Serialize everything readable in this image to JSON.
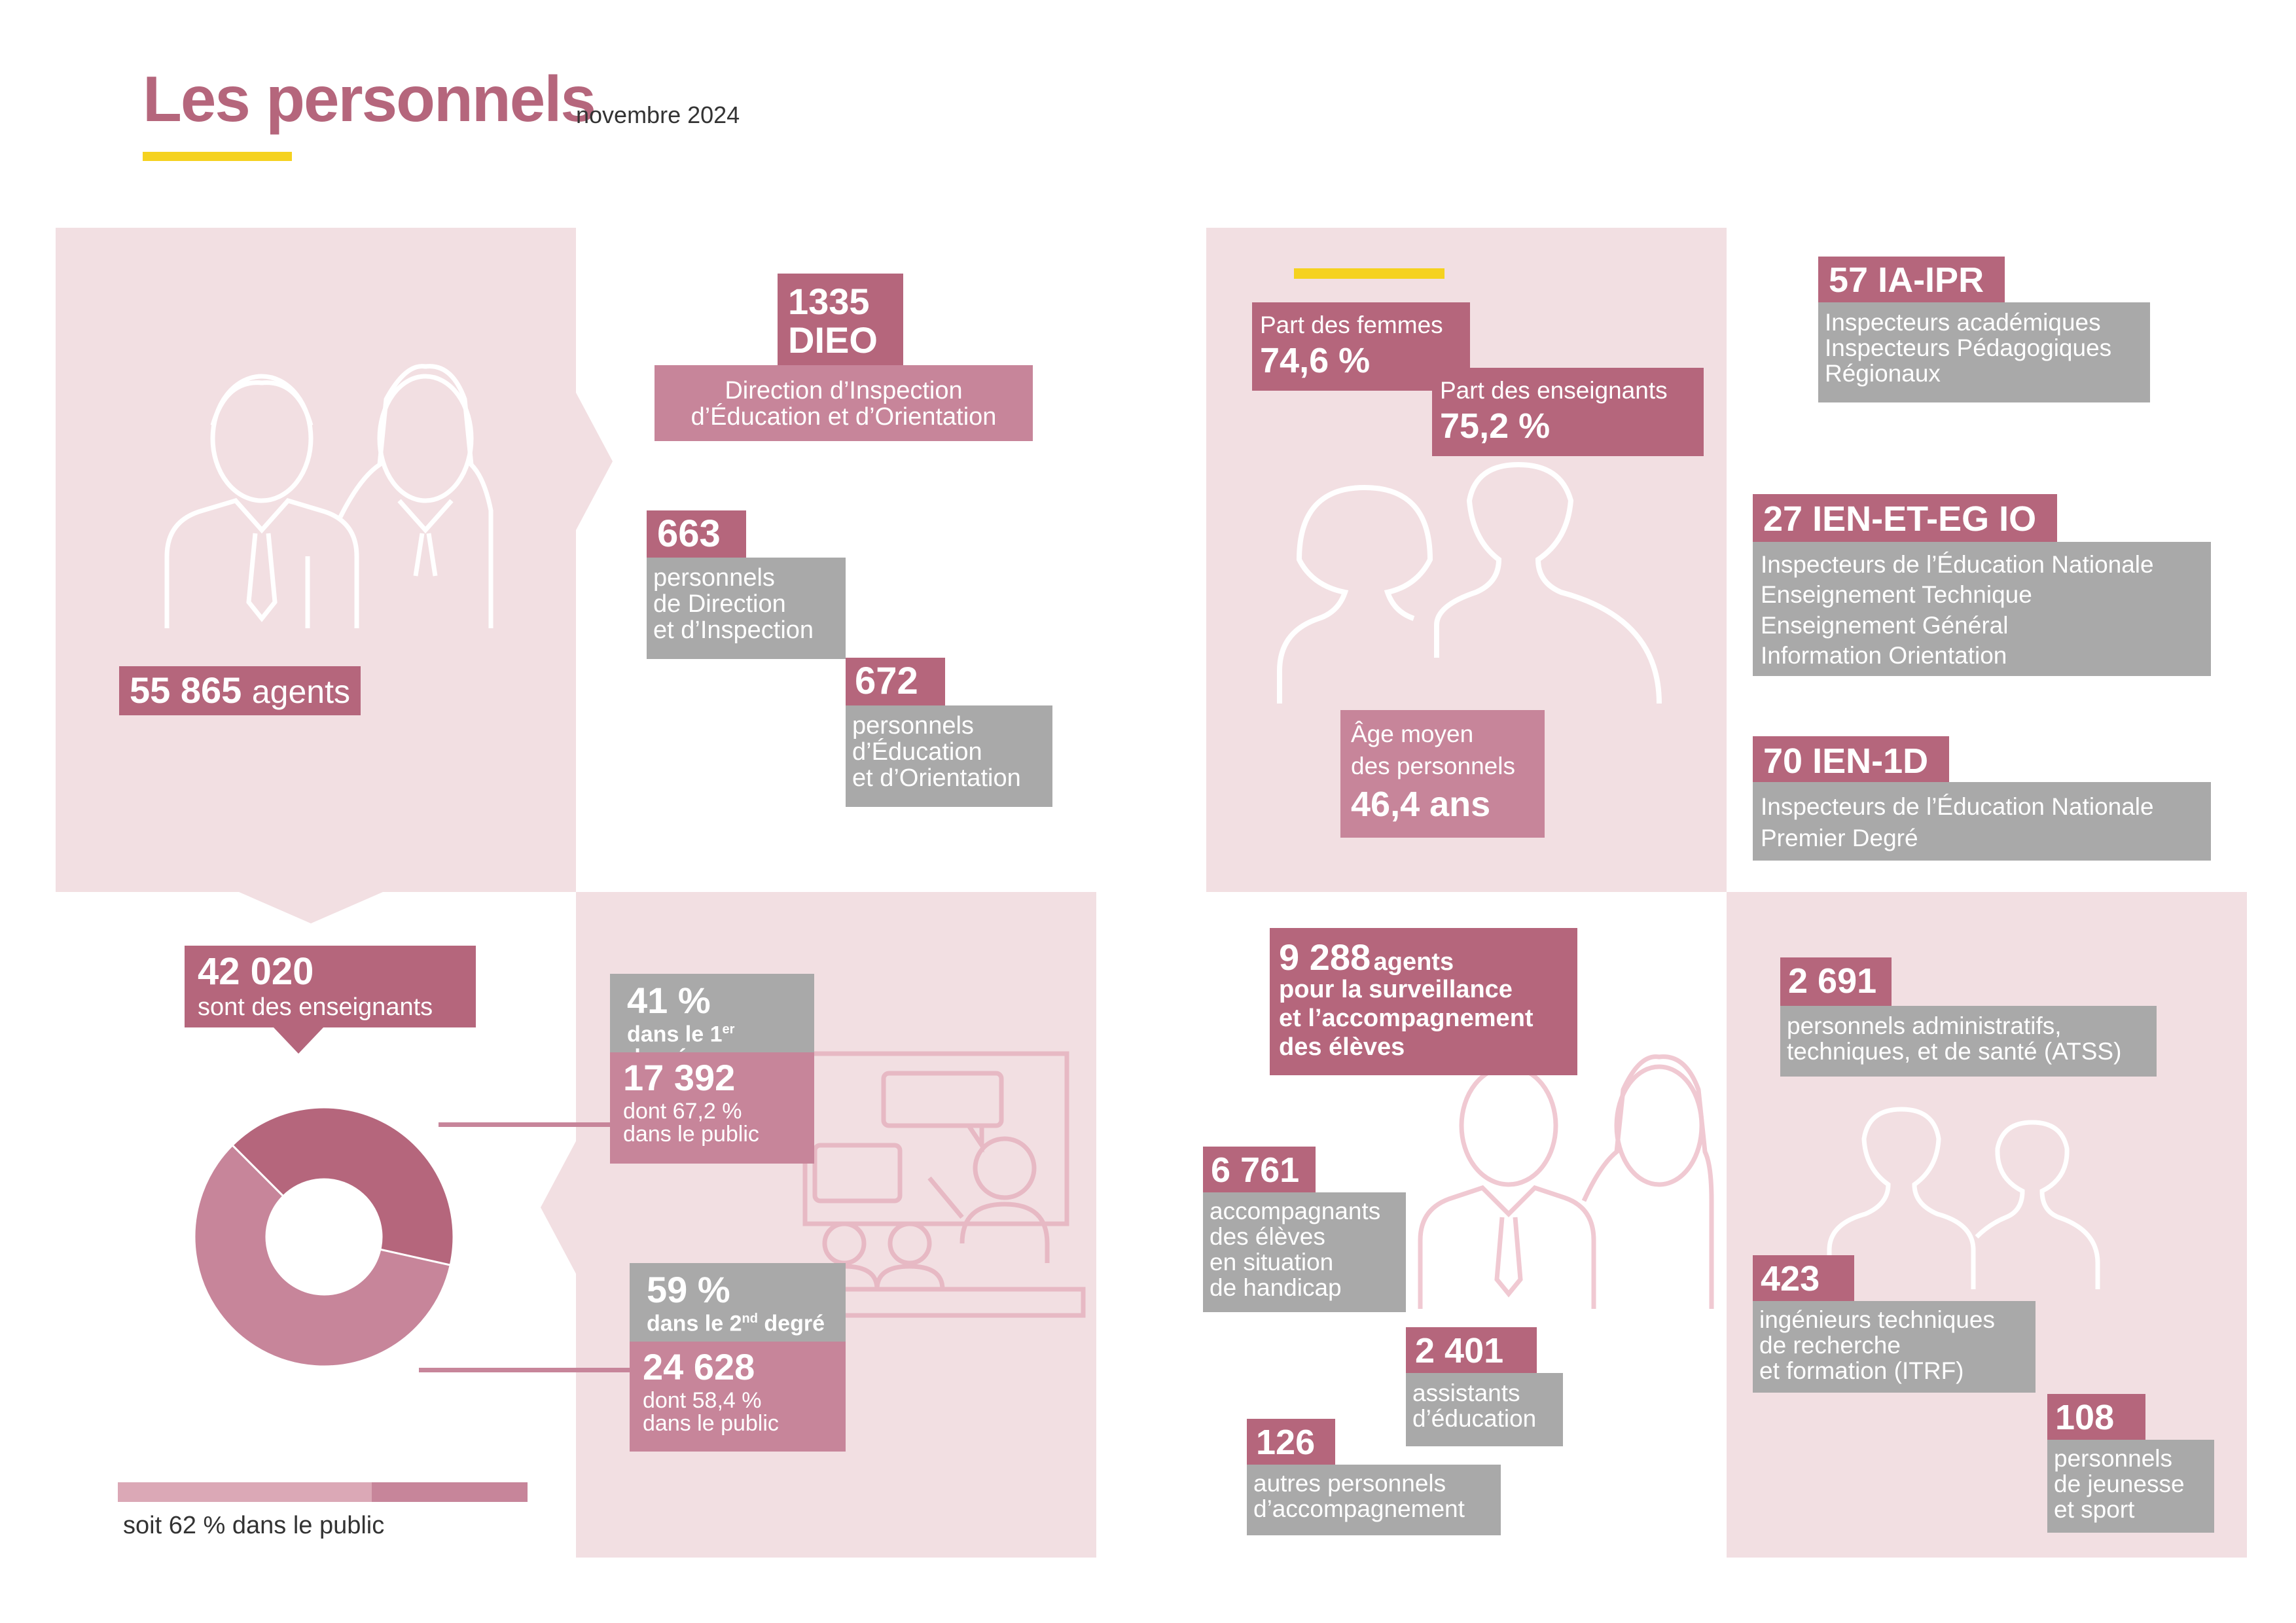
{
  "header": {
    "title": "Les personnels",
    "subtitle": "novembre 2024"
  },
  "agents": {
    "value": "55 865",
    "unit": "agents"
  },
  "dieo": {
    "value_line1": "1335",
    "value_line2": "DIEO",
    "desc_line1": "Direction d’Inspection",
    "desc_line2": "d’Éducation et d’Orientation"
  },
  "direction": {
    "value": "663",
    "line1": "personnels",
    "line2": "de Direction",
    "line3": "et d’Inspection"
  },
  "education": {
    "value": "672",
    "line1": "personnels",
    "line2": "d’Éducation",
    "line3": "et d’Orientation"
  },
  "enseignants": {
    "value": "42 020",
    "label": "sont des enseignants"
  },
  "premier_degre": {
    "percent": "41 %",
    "label_pre": "dans le 1",
    "label_sup": "er",
    "label_post": " degré",
    "count": "17 392",
    "public_line1": "dont 67,2 %",
    "public_line2": "dans le public"
  },
  "second_degre": {
    "percent": "59 %",
    "label_pre": "dans le 2",
    "label_sup": "nd",
    "label_post": " degré",
    "count": "24 628",
    "public_line1": "dont 58,4 %",
    "public_line2": "dans le public"
  },
  "public_total": {
    "label": "soit 62 % dans le public",
    "fraction": 0.62
  },
  "donut": {
    "first_degree_fraction": 0.41,
    "second_degree_fraction": 0.59,
    "color_first": "#b5667c",
    "color_second": "#c7859a"
  },
  "femmes": {
    "label": "Part des femmes",
    "value": "74,6 %"
  },
  "part_enseignants": {
    "label": "Part des enseignants",
    "value": "75,2 %"
  },
  "age": {
    "line1": "Âge moyen",
    "line2": "des personnels",
    "value": "46,4 ans"
  },
  "ia_ipr": {
    "value": "57 IA-IPR",
    "line1": "Inspecteurs académiques",
    "line2": "Inspecteurs Pédagogiques",
    "line3": "Régionaux"
  },
  "ien_et": {
    "value": "27 IEN-ET-EG IO",
    "line1": "Inspecteurs de l’Éducation Nationale",
    "line2": "Enseignement Technique",
    "line3": "Enseignement Général",
    "line4": "Information Orientation"
  },
  "ien_1d": {
    "value": "70 IEN-1D",
    "line1": "Inspecteurs de l’Éducation Nationale",
    "line2": "Premier Degré"
  },
  "surveillance": {
    "value": "9 288",
    "unit": "agents",
    "line1": "pour la surveillance",
    "line2": "et l’accompagnement",
    "line3": "des élèves"
  },
  "handicap": {
    "value": "6 761",
    "line1": "accompagnants",
    "line2": "des élèves",
    "line3": "en situation",
    "line4": "de handicap"
  },
  "assistants": {
    "value": "2 401",
    "line1": "assistants",
    "line2": "d’éducation"
  },
  "autres": {
    "value": "126",
    "line1": "autres personnels",
    "line2": "d’accompagnement"
  },
  "atss": {
    "value": "2 691",
    "line1": "personnels administratifs,",
    "line2": "techniques, et de santé (ATSS)"
  },
  "itrf": {
    "value": "423",
    "line1": "ingénieurs techniques",
    "line2": "de recherche",
    "line3": "et formation (ITRF)"
  },
  "jeunesse": {
    "value": "108",
    "line1": "personnels",
    "line2": "de jeunesse",
    "line3": "et sport"
  },
  "colors": {
    "title": "#b5667c",
    "accent_yellow": "#f5d21f",
    "panel": "#f2dfe2",
    "rose": "#b5667c",
    "rose_light": "#c7859a",
    "gray": "#a9a9a9"
  }
}
